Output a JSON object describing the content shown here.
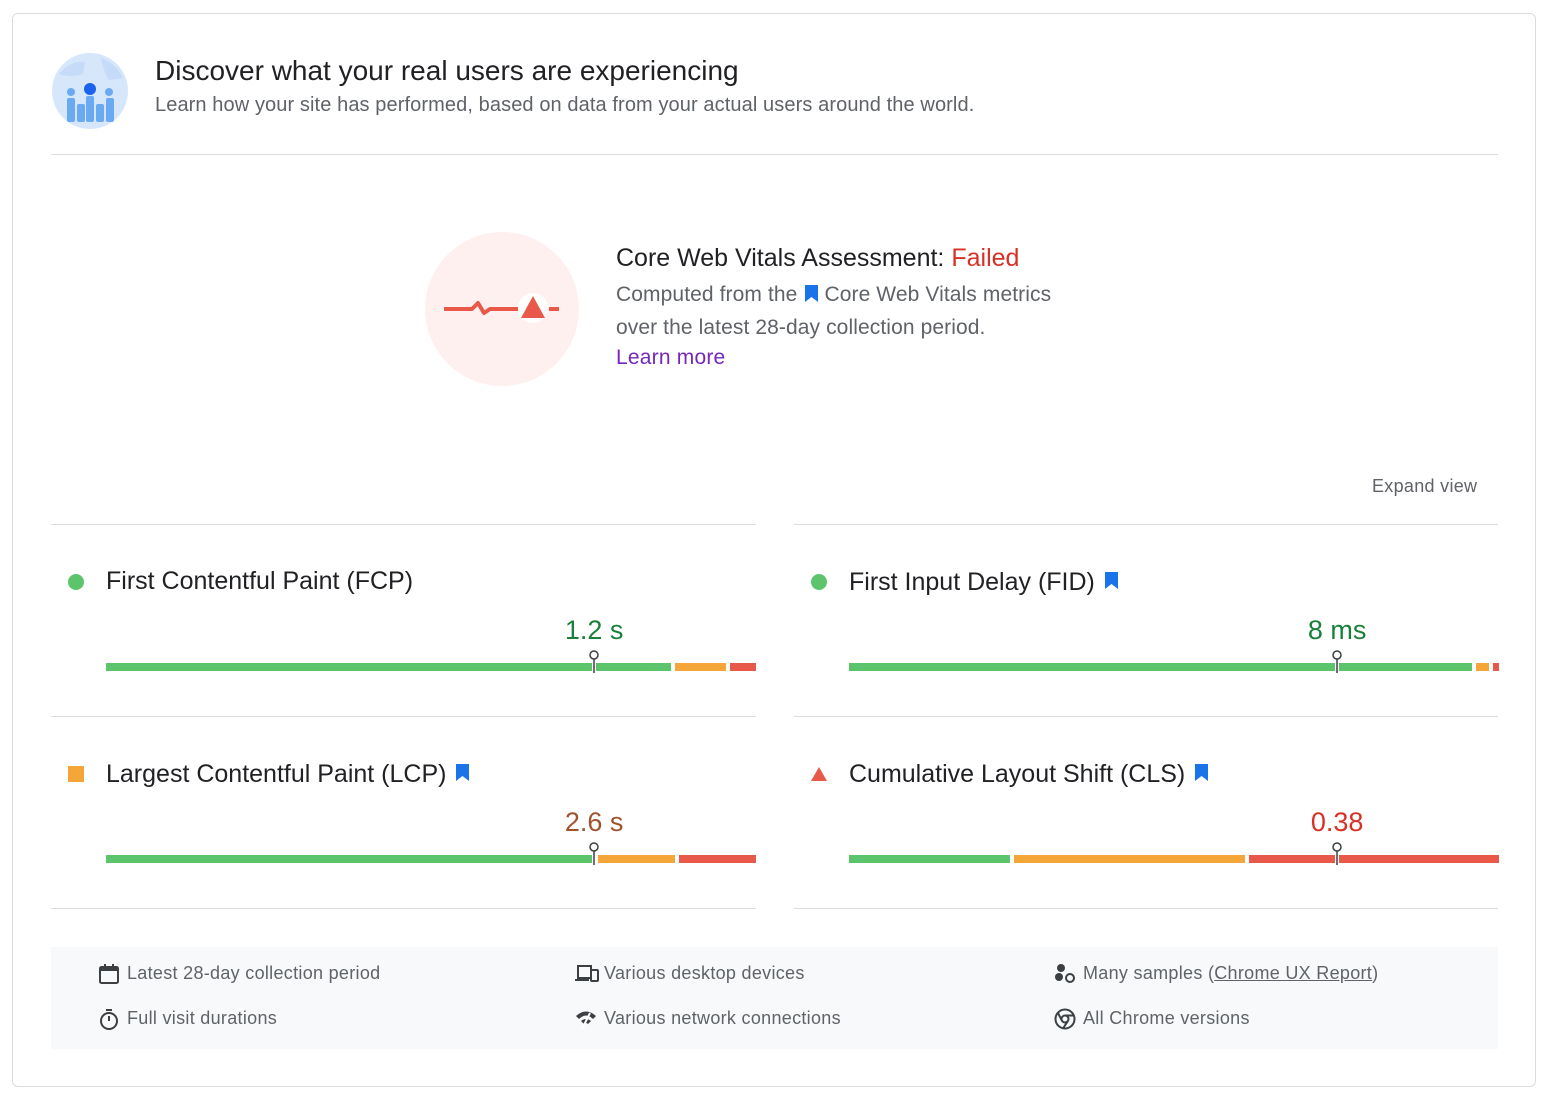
{
  "header": {
    "title": "Discover what your real users are experiencing",
    "subtitle": "Learn how your site has performed, based on data from your actual users around the world."
  },
  "assessment": {
    "title_prefix": "Core Web Vitals Assessment:",
    "status": "Failed",
    "line1_prefix": "Computed from the",
    "line1_link": "Core Web Vitals metrics",
    "line2": "over the latest 28-day collection period.",
    "learn_more": "Learn more"
  },
  "expand_view": "Expand view",
  "metrics": [
    {
      "name": "First Contentful Paint (FCP)",
      "value": "1.2 s",
      "status": "good",
      "core_vital": false,
      "value_color": "#188038",
      "distribution": [
        0.88,
        0.08,
        0.04
      ],
      "marker": 0.751
    },
    {
      "name": "First Input Delay (FID)",
      "value": "8 ms",
      "status": "good",
      "core_vital": true,
      "value_color": "#188038",
      "distribution": [
        0.97,
        0.02,
        0.01
      ],
      "marker": 0.751
    },
    {
      "name": "Largest Contentful Paint (LCP)",
      "value": "2.6 s",
      "status": "needs-improvement",
      "core_vital": true,
      "value_color": "#a0522d",
      "distribution": [
        0.76,
        0.12,
        0.12
      ],
      "marker": 0.751
    },
    {
      "name": "Cumulative Layout Shift (CLS)",
      "value": "0.38",
      "status": "poor",
      "core_vital": true,
      "value_color": "#d93025",
      "distribution": [
        0.25,
        0.36,
        0.39
      ],
      "marker": 0.751
    }
  ],
  "footer": {
    "items": [
      {
        "icon": "calendar-icon",
        "text": "Latest 28-day collection period"
      },
      {
        "icon": "devices-icon",
        "text": "Various desktop devices"
      },
      {
        "icon": "samples-icon",
        "text_prefix": "Many samples (",
        "link": "Chrome UX Report",
        "text_suffix": ")"
      },
      {
        "icon": "timer-icon",
        "text": "Full visit durations"
      },
      {
        "icon": "network-icon",
        "text": "Various network connections"
      },
      {
        "icon": "chrome-icon",
        "text": "All Chrome versions"
      }
    ]
  },
  "colors": {
    "good": "#5cc56c",
    "needs_improvement": "#f4a638",
    "poor": "#e8594a",
    "bookmark": "#1a73e8",
    "failed": "#d93025",
    "link": "#7627bb"
  }
}
